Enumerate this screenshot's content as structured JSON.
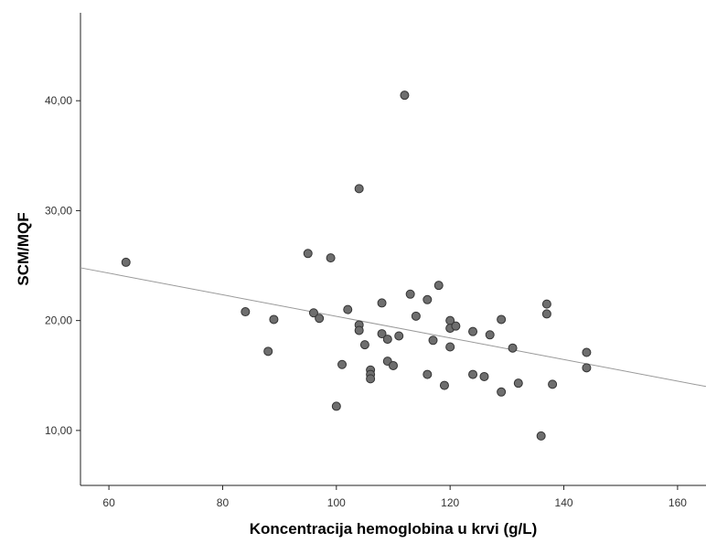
{
  "chart_data": {
    "type": "scatter",
    "xlabel": "Koncentracija hemoglobina u krvi (g/L)",
    "ylabel": "SCM/MQF",
    "xlim": [
      55,
      165
    ],
    "ylim": [
      5,
      48
    ],
    "x_ticks": [
      60,
      80,
      100,
      120,
      140,
      160
    ],
    "x_tick_labels": [
      "60",
      "80",
      "100",
      "120",
      "140",
      "160"
    ],
    "y_ticks": [
      10,
      20,
      30,
      40
    ],
    "y_tick_labels": [
      "10,00",
      "20,00",
      "30,00",
      "40,00"
    ],
    "grid": false,
    "point_color": "#6e6e6e",
    "point_edge_color": "#333333",
    "line_color": "#999999",
    "fit_line": {
      "x": [
        55,
        165
      ],
      "y": [
        24.8,
        14.0
      ]
    },
    "points": [
      [
        63,
        25.3
      ],
      [
        84,
        20.8
      ],
      [
        88,
        17.2
      ],
      [
        89,
        20.1
      ],
      [
        95,
        26.1
      ],
      [
        96,
        20.7
      ],
      [
        97,
        20.2
      ],
      [
        99,
        25.7
      ],
      [
        100,
        12.2
      ],
      [
        101,
        16.0
      ],
      [
        102,
        21.0
      ],
      [
        104,
        32.0
      ],
      [
        104,
        19.6
      ],
      [
        104,
        19.1
      ],
      [
        105,
        17.8
      ],
      [
        106,
        15.5
      ],
      [
        106,
        15.1
      ],
      [
        106,
        14.7
      ],
      [
        108,
        21.6
      ],
      [
        108,
        18.8
      ],
      [
        109,
        16.3
      ],
      [
        109,
        18.3
      ],
      [
        110,
        15.9
      ],
      [
        111,
        18.6
      ],
      [
        112,
        40.5
      ],
      [
        113,
        22.4
      ],
      [
        114,
        20.4
      ],
      [
        116,
        21.9
      ],
      [
        116,
        15.1
      ],
      [
        117,
        18.2
      ],
      [
        118,
        23.2
      ],
      [
        119,
        14.1
      ],
      [
        120,
        20.0
      ],
      [
        120,
        19.3
      ],
      [
        120,
        17.6
      ],
      [
        121,
        19.5
      ],
      [
        124,
        19.0
      ],
      [
        124,
        15.1
      ],
      [
        126,
        14.9
      ],
      [
        127,
        18.7
      ],
      [
        129,
        20.1
      ],
      [
        129,
        13.5
      ],
      [
        131,
        17.5
      ],
      [
        132,
        14.3
      ],
      [
        136,
        9.5
      ],
      [
        137,
        21.5
      ],
      [
        137,
        20.6
      ],
      [
        138,
        14.2
      ],
      [
        144,
        17.1
      ],
      [
        144,
        15.7
      ]
    ]
  }
}
